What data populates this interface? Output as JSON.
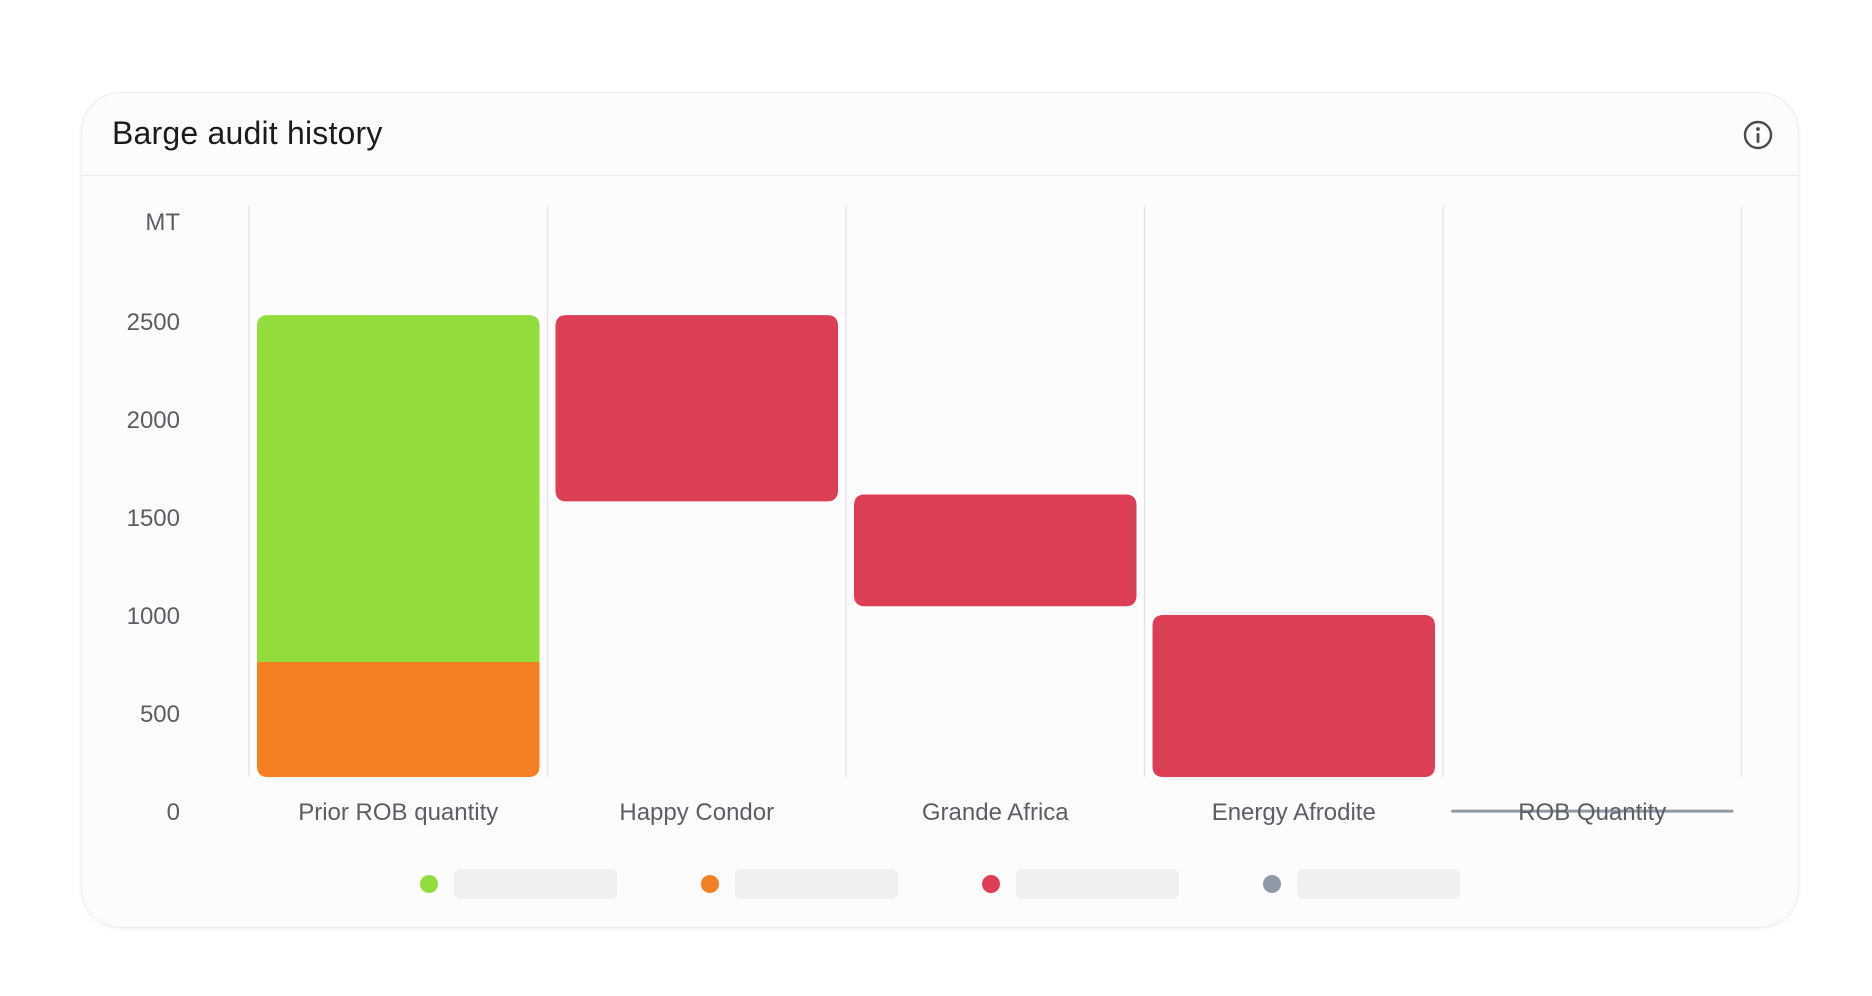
{
  "card": {
    "title": "Barge audit history",
    "info_icon": "info-circle-icon"
  },
  "colors": {
    "prior_rob": "#92dd3c",
    "prior_rob_base": "#f48023",
    "delivery": "#dc3f55",
    "rob": "#8e9ba6",
    "grid": "#e6e4ea",
    "text": "#5d5d66"
  },
  "chart_data": {
    "type": "bar",
    "subtype": "waterfall",
    "ylabel": "MT",
    "yticks": [
      0,
      500,
      1000,
      1500,
      2000,
      2500
    ],
    "ylim": [
      0,
      2900
    ],
    "categories": [
      "Prior ROB quantity",
      "Happy Condor",
      "Grande Africa",
      "Energy Afrodite",
      "ROB Quantity"
    ],
    "bars": [
      {
        "category": "Prior ROB quantity",
        "segments": [
          {
            "from": 0,
            "to": 765,
            "color_key": "prior_rob_base"
          },
          {
            "from": 765,
            "to": 2535,
            "color_key": "prior_rob"
          }
        ]
      },
      {
        "category": "Happy Condor",
        "segments": [
          {
            "from": 1585,
            "to": 2535,
            "color_key": "delivery"
          }
        ]
      },
      {
        "category": "Grande Africa",
        "segments": [
          {
            "from": 1050,
            "to": 1620,
            "color_key": "delivery"
          }
        ]
      },
      {
        "category": "Energy Afrodite",
        "segments": [
          {
            "from": 0,
            "to": 1005,
            "color_key": "delivery"
          }
        ]
      },
      {
        "category": "ROB Quantity",
        "segments": [
          {
            "from": 0,
            "to": 12,
            "color_key": "rob"
          }
        ]
      }
    ],
    "legend": {
      "position": "bottom",
      "items": [
        {
          "color_key": "prior_rob",
          "label": ""
        },
        {
          "color_key": "prior_rob_base",
          "label": ""
        },
        {
          "color_key": "delivery",
          "label": ""
        },
        {
          "color_key": "rob",
          "label": ""
        }
      ]
    },
    "grid": "vertical"
  }
}
